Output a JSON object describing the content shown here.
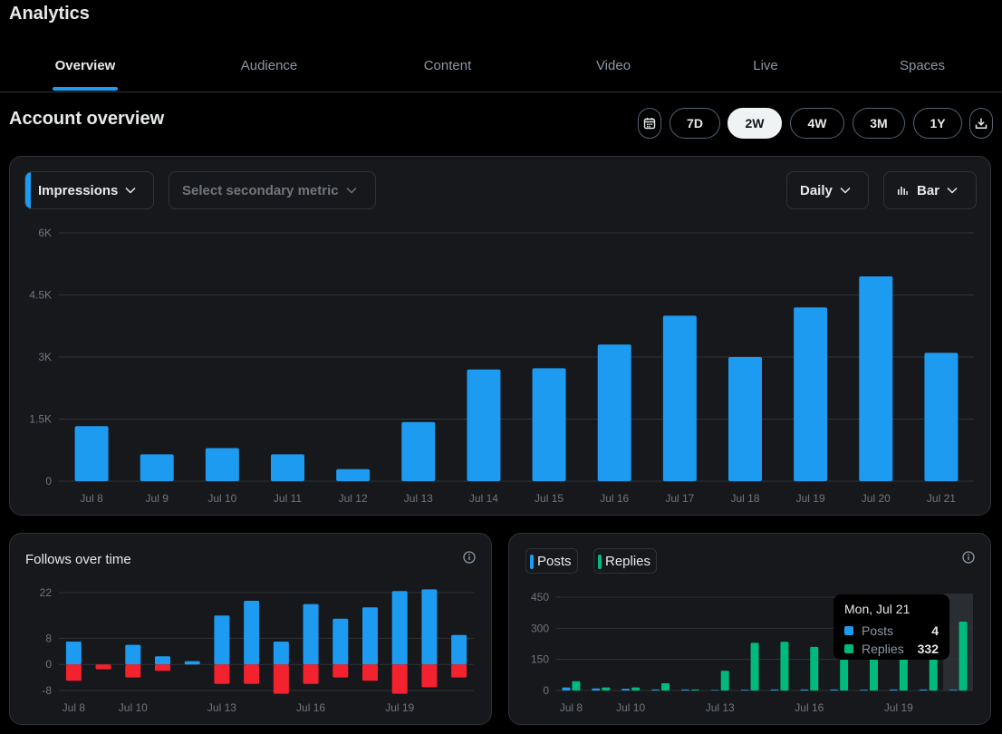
{
  "app": {
    "title": "Analytics"
  },
  "tabs": [
    {
      "label": "Overview",
      "active": true
    },
    {
      "label": "Audience",
      "active": false
    },
    {
      "label": "Content",
      "active": false
    },
    {
      "label": "Video",
      "active": false
    },
    {
      "label": "Live",
      "active": false
    },
    {
      "label": "Spaces",
      "active": false
    }
  ],
  "section": {
    "title": "Account overview"
  },
  "range": {
    "options": [
      "7D",
      "2W",
      "4W",
      "3M",
      "1Y"
    ],
    "selected": "2W",
    "calendar_icon": "calendar-icon",
    "download_icon": "download-icon"
  },
  "main_card": {
    "primary_metric": "Impressions",
    "secondary_placeholder": "Select secondary metric",
    "interval": "Daily",
    "chart_type": "Bar",
    "chart_type_icon": "bar-chart-icon"
  },
  "follows_card": {
    "title": "Follows over time",
    "info_icon": "info-icon"
  },
  "posts_card": {
    "legend": [
      {
        "label": "Posts",
        "color": "#1d9bf0"
      },
      {
        "label": "Replies",
        "color": "#00ba7c"
      }
    ],
    "info_icon": "info-icon",
    "tooltip": {
      "title": "Mon, Jul 21",
      "rows": [
        {
          "label": "Posts",
          "value": "4"
        },
        {
          "label": "Replies",
          "value": "332"
        }
      ]
    }
  },
  "colors": {
    "accent": "#1d9bf0",
    "green": "#00ba7c",
    "red": "#f4212e",
    "card": "#16181c"
  },
  "chart_data": [
    {
      "type": "bar",
      "categories": [
        "Jul 8",
        "Jul 9",
        "Jul 10",
        "Jul 11",
        "Jul 12",
        "Jul 13",
        "Jul 14",
        "Jul 15",
        "Jul 16",
        "Jul 17",
        "Jul 18",
        "Jul 19",
        "Jul 20",
        "Jul 21"
      ],
      "series": [
        {
          "name": "Impressions",
          "values": [
            1330,
            650,
            800,
            650,
            290,
            1430,
            2700,
            2730,
            3300,
            4000,
            3000,
            4200,
            4950,
            3100
          ]
        }
      ],
      "yticks": [
        "0",
        "1.5K",
        "3K",
        "4.5K",
        "6K"
      ],
      "ylim": [
        0,
        6000
      ],
      "grid": true
    },
    {
      "type": "bar",
      "categories": [
        "Jul 8",
        "Jul 9",
        "Jul 10",
        "Jul 11",
        "Jul 12",
        "Jul 13",
        "Jul 14",
        "Jul 15",
        "Jul 16",
        "Jul 17",
        "Jul 18",
        "Jul 19",
        "Jul 20",
        "Jul 21"
      ],
      "xtick_labels": [
        "Jul 8",
        "",
        "Jul 10",
        "",
        "",
        "Jul 13",
        "",
        "",
        "Jul 16",
        "",
        "",
        "Jul 19",
        "",
        ""
      ],
      "series": [
        {
          "name": "",
          "values": [
            7,
            0,
            6,
            2.5,
            1,
            15,
            19.5,
            7,
            18.5,
            14,
            17.5,
            22.5,
            23,
            9
          ]
        },
        {
          "name": "",
          "values": [
            -5,
            -1.5,
            -4,
            -2,
            0,
            -6,
            -6,
            -9,
            -6,
            -4,
            -5,
            -9,
            -7,
            -4
          ]
        }
      ],
      "yticks": [
        "-8",
        "0",
        "8",
        "22"
      ],
      "ylim": [
        -8,
        22
      ],
      "grid": true
    },
    {
      "type": "bar",
      "categories": [
        "Jul 8",
        "Jul 9",
        "Jul 10",
        "Jul 11",
        "Jul 12",
        "Jul 13",
        "Jul 14",
        "Jul 15",
        "Jul 16",
        "Jul 17",
        "Jul 18",
        "Jul 19",
        "Jul 20",
        "Jul 21"
      ],
      "xtick_labels": [
        "Jul 8",
        "",
        "Jul 10",
        "",
        "",
        "Jul 13",
        "",
        "",
        "Jul 16",
        "",
        "",
        "Jul 19",
        "",
        ""
      ],
      "series": [
        {
          "name": "Posts",
          "values": [
            15,
            10,
            8,
            5,
            5,
            3,
            4,
            5,
            5,
            5,
            4,
            5,
            5,
            4
          ]
        },
        {
          "name": "Replies",
          "values": [
            45,
            15,
            15,
            35,
            5,
            95,
            230,
            235,
            210,
            220,
            250,
            300,
            340,
            332
          ]
        }
      ],
      "yticks": [
        "0",
        "150",
        "300",
        "450"
      ],
      "ylim": [
        0,
        450
      ],
      "grid": true
    }
  ]
}
